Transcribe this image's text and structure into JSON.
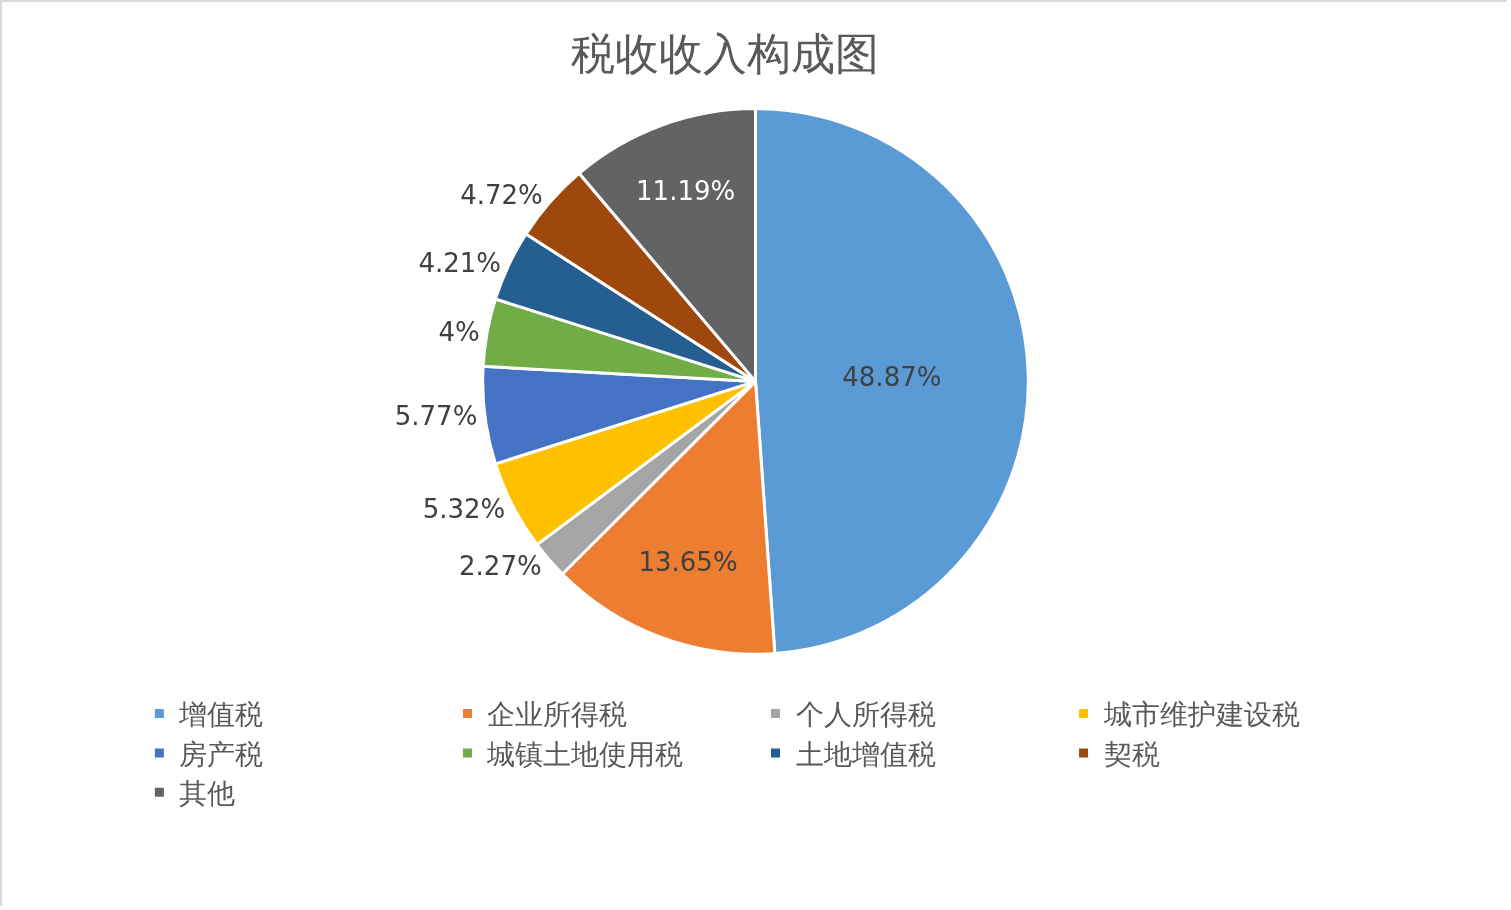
{
  "chart_data": {
    "type": "pie",
    "title": "税收收入构成图",
    "categories": [
      "增值税",
      "企业所得税",
      "个人所得税",
      "城市维护建设税",
      "房产税",
      "城镇土地使用税",
      "土地增值税",
      "契税",
      "其他"
    ],
    "values": [
      48.87,
      13.65,
      2.27,
      5.32,
      5.77,
      4,
      4.21,
      4.72,
      11.19
    ],
    "value_labels": [
      "48.87%",
      "13.65%",
      "2.27%",
      "5.32%",
      "5.77%",
      "4%",
      "4.21%",
      "4.72%",
      "11.19%"
    ],
    "colors": [
      "#5b9bd5",
      "#ed7d31",
      "#a5a5a5",
      "#ffc000",
      "#4472c4",
      "#70ad47",
      "#255e91",
      "#9e480e",
      "#636363"
    ],
    "legend": "bottom"
  }
}
